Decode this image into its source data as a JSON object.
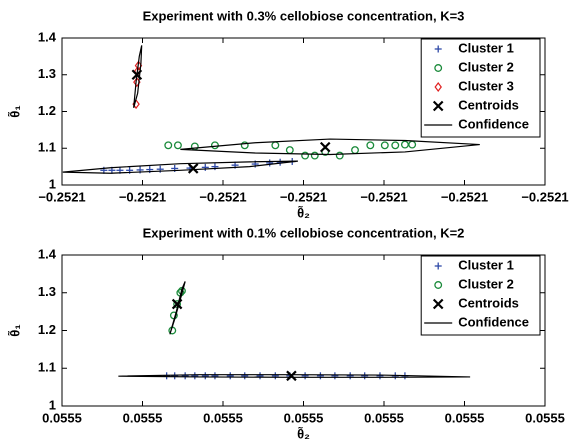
{
  "chart_data": [
    {
      "type": "scatter",
      "title": "Experiment with 0.3% cellobiose concentration, K=3",
      "xlabel": "θ̃₂",
      "ylabel": "θ̃₁",
      "xlim": [
        -0.25213,
        -0.25207
      ],
      "ylim": [
        1,
        1.4
      ],
      "xticks": [
        {
          "value": -0.25213,
          "label": "−0.2521"
        },
        {
          "value": -0.25212,
          "label": "−0.2521"
        },
        {
          "value": -0.25211,
          "label": "−0.2521"
        },
        {
          "value": -0.2521,
          "label": "−0.2521"
        },
        {
          "value": -0.25209,
          "label": "−0.2521"
        },
        {
          "value": -0.25208,
          "label": "−0.2521"
        },
        {
          "value": -0.25207,
          "label": "−0.2521"
        }
      ],
      "yticks": [
        1,
        1.1,
        1.2,
        1.3,
        1.4
      ],
      "legend": "upper right",
      "series": [
        {
          "name": "Cluster 1",
          "color": "#2f4aa8",
          "marker": "plus",
          "x": [
            -0.2521248,
            -0.2521238,
            -0.2521228,
            -0.2521216,
            -0.2521203,
            -0.2521191,
            -0.2521178,
            -0.252116,
            -0.2521141,
            -0.2521122,
            -0.252111,
            -0.2521085,
            -0.252106,
            -0.2521042,
            -0.2521029,
            -0.2521014
          ],
          "values": [
            1.04,
            1.04,
            1.04,
            1.04,
            1.041,
            1.042,
            1.043,
            1.045,
            1.046,
            1.048,
            1.05,
            1.054,
            1.057,
            1.06,
            1.062,
            1.064
          ]
        },
        {
          "name": "Cluster 2",
          "color": "#1a8a3a",
          "marker": "circle",
          "x": [
            -0.2521168,
            -0.2521156,
            -0.2521135,
            -0.252111,
            -0.2521073,
            -0.2521035,
            -0.2521017,
            -0.2520998,
            -0.2520986,
            -0.2520973,
            -0.2520955,
            -0.2520936,
            -0.2520917,
            -0.2520899,
            -0.2520886,
            -0.2520874,
            -0.2520865
          ],
          "values": [
            1.108,
            1.108,
            1.105,
            1.108,
            1.108,
            1.108,
            1.095,
            1.08,
            1.08,
            1.09,
            1.08,
            1.095,
            1.108,
            1.108,
            1.108,
            1.11,
            1.11
          ]
        },
        {
          "name": "Cluster 3",
          "color": "#e02020",
          "marker": "diamond",
          "x": [
            -0.2521208,
            -0.2521207,
            -0.2521206,
            -0.2521205
          ],
          "values": [
            1.22,
            1.28,
            1.31,
            1.325
          ]
        },
        {
          "name": "Centroids",
          "color": "#000000",
          "marker": "cross",
          "x": [
            -0.2521207,
            -0.2521137,
            -0.2520973
          ],
          "values": [
            1.3,
            1.045,
            1.103
          ]
        },
        {
          "name": "Confidence",
          "color": "#000000",
          "marker": "line",
          "x": [
            -0.2521299,
            -0.252124,
            -0.2521153,
            -0.2521067,
            -0.2521007,
            -0.2521067,
            -0.2521153,
            -0.252124,
            -0.2521299,
            null,
            -0.2521153,
            -0.252106,
            -0.2520967,
            -0.2520874,
            -0.2520781,
            -0.2520874,
            -0.2520967,
            -0.252106,
            -0.2521153,
            null,
            -0.2521211,
            -0.2521206,
            -0.2521202,
            -0.2521201,
            -0.2521204,
            -0.2521208,
            -0.2521211
          ],
          "values": [
            1.035,
            1.032,
            1.04,
            1.05,
            1.065,
            1.063,
            1.058,
            1.047,
            1.035,
            null,
            1.097,
            1.087,
            1.083,
            1.09,
            1.11,
            1.121,
            1.125,
            1.115,
            1.097,
            null,
            1.21,
            1.25,
            1.33,
            1.38,
            1.35,
            1.28,
            1.21
          ]
        }
      ]
    },
    {
      "type": "scatter",
      "title": "Experiment with 0.1% cellobiose concentration, K=2",
      "xlabel": "θ̃₂",
      "ylabel": "θ̃₁",
      "xlim": [
        0.05547,
        0.05553
      ],
      "ylim": [
        1,
        1.4
      ],
      "xticks": [
        {
          "value": 0.05547,
          "label": "0.0555"
        },
        {
          "value": 0.05548,
          "label": "0.0555"
        },
        {
          "value": 0.05549,
          "label": "0.0555"
        },
        {
          "value": 0.0555,
          "label": "0.0555"
        },
        {
          "value": 0.05551,
          "label": "0.0555"
        },
        {
          "value": 0.05552,
          "label": "0.0555"
        },
        {
          "value": 0.05553,
          "label": "0.0555"
        }
      ],
      "yticks": [
        1,
        1.1,
        1.2,
        1.3,
        1.4
      ],
      "legend": "upper right",
      "series": [
        {
          "name": "Cluster 1",
          "color": "#2f4aa8",
          "marker": "plus",
          "x": [
            0.055483,
            0.055484,
            0.0554853,
            0.0554865,
            0.0554878,
            0.055489,
            0.0554909,
            0.0554927,
            0.0554946,
            0.0554965,
            0.0554983,
            0.0555002,
            0.0555021,
            0.0555039,
            0.0555058,
            0.0555076,
            0.0555095,
            0.0555114,
            0.0555126
          ],
          "values": [
            1.08,
            1.08,
            1.08,
            1.08,
            1.08,
            1.08,
            1.08,
            1.08,
            1.08,
            1.08,
            1.08,
            1.08,
            1.08,
            1.08,
            1.08,
            1.08,
            1.08,
            1.08,
            1.08
          ]
        },
        {
          "name": "Cluster 2",
          "color": "#1a8a3a",
          "marker": "circle",
          "x": [
            0.0554837,
            0.0554839,
            0.0554843,
            0.0554847,
            0.0554849
          ],
          "values": [
            1.2,
            1.24,
            1.27,
            1.3,
            1.305
          ]
        },
        {
          "name": "Centroids",
          "color": "#000000",
          "marker": "cross",
          "x": [
            0.0554843,
            0.0554985
          ],
          "values": [
            1.27,
            1.08
          ]
        },
        {
          "name": "Confidence",
          "color": "#000000",
          "marker": "line",
          "x": [
            0.055477,
            0.0554871,
            0.0554983,
            0.0555095,
            0.0555207,
            0.0555095,
            0.0554983,
            0.0554871,
            0.055477,
            null,
            0.0554834,
            0.055484,
            0.0554848,
            0.0554853,
            0.0554849,
            0.0554842,
            0.0554834
          ],
          "values": [
            1.079,
            1.077,
            1.076,
            1.076,
            1.077,
            1.082,
            1.083,
            1.083,
            1.079,
            null,
            1.19,
            1.23,
            1.29,
            1.33,
            1.31,
            1.25,
            1.19
          ]
        }
      ]
    }
  ]
}
